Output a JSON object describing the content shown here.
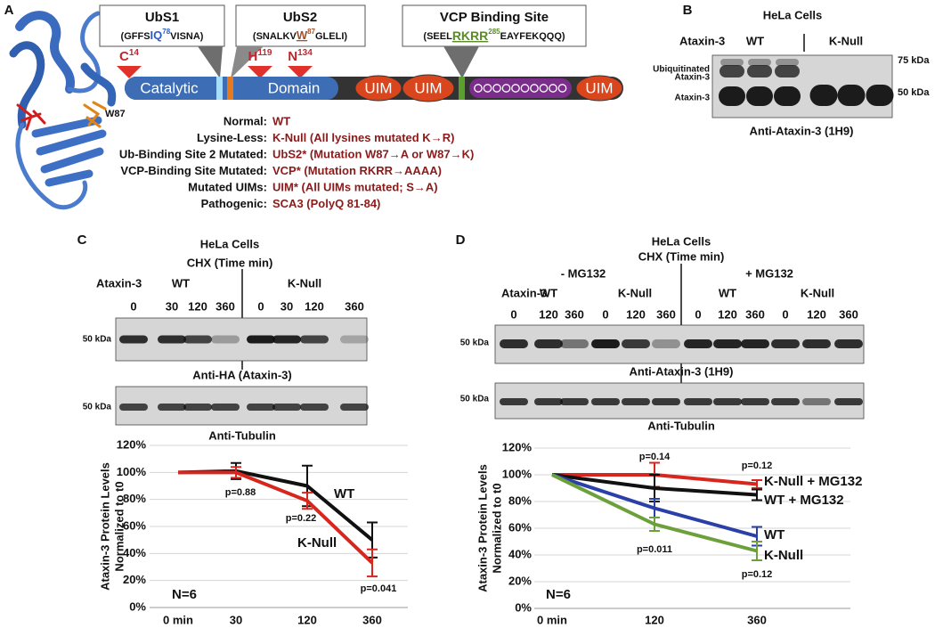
{
  "panel_a": {
    "label": "A",
    "sites": [
      {
        "title": "UbS1",
        "seq": [
          "(GFFS",
          "IQ",
          "78",
          "VISNA)"
        ]
      },
      {
        "title": "UbS2",
        "seq": [
          "(SNALKV",
          "W",
          "87",
          "GLELI)"
        ]
      },
      {
        "title": "VCP Binding Site",
        "seq": [
          "(SEEL",
          "RKRR",
          "285",
          "EAYFEKQQQ)"
        ]
      }
    ],
    "residues": [
      {
        "aa": "C",
        "pos": "14"
      },
      {
        "aa": "H",
        "pos": "119"
      },
      {
        "aa": "N",
        "pos": "134"
      }
    ],
    "domains": [
      "Catalytic",
      "Domain"
    ],
    "uims": [
      "UIM",
      "UIM",
      "UIM"
    ],
    "structure_label": "W87",
    "constructs": [
      {
        "label": "Normal:",
        "value": "WT"
      },
      {
        "label": "Lysine-Less:",
        "value": "K-Null (All lysines mutated K→R)"
      },
      {
        "label": "Ub-Binding Site 2 Mutated:",
        "value": "UbS2* (Mutation W87→A or W87→K)"
      },
      {
        "label": "VCP-Binding Site Mutated:",
        "value": "VCP* (Mutation RKRR→AAAA)"
      },
      {
        "label": "Mutated UIMs:",
        "value": "UIM* (All UIMs mutated; S→A)"
      },
      {
        "label": "Pathogenic:",
        "value": "SCA3 (PolyQ 81-84)"
      }
    ]
  },
  "panel_b": {
    "label": "B",
    "title": "HeLa Cells",
    "row_label": "Ataxin-3",
    "groups": [
      "WT",
      "K-Null"
    ],
    "markers": [
      "75 kDa",
      "50 kDa"
    ],
    "ubiquitinated_label": [
      "Ubiquitinated",
      "Ataxin-3"
    ],
    "band_label": "Ataxin-3",
    "antibody": "Anti-Ataxin-3 (1H9)"
  },
  "panel_c": {
    "label": "C",
    "title": "HeLa Cells",
    "subtitle": "CHX (Time min)",
    "row_label": "Ataxin-3",
    "groups": [
      "WT",
      "K-Null"
    ],
    "lanes": [
      "0",
      "30",
      "120",
      "360",
      "0",
      "30",
      "120",
      "360"
    ],
    "markers": [
      "50 kDa",
      "50 kDa"
    ],
    "antibodies": [
      "Anti-HA (Ataxin-3)",
      "Anti-Tubulin"
    ]
  },
  "panel_d": {
    "label": "D",
    "title": "HeLa Cells",
    "subtitle": "CHX (Time min)",
    "conditions": [
      "- MG132",
      "+ MG132"
    ],
    "row_label": "Ataxin-3",
    "groups": [
      "WT",
      "K-Null",
      "WT",
      "K-Null"
    ],
    "lanes": [
      "0",
      "120",
      "360",
      "0",
      "120",
      "360",
      "0",
      "120",
      "360",
      "0",
      "120",
      "360"
    ],
    "markers": [
      "50 kDa",
      "50 kDa"
    ],
    "antibodies": [
      "Anti-Ataxin-3 (1H9)",
      "Anti-Tubulin"
    ]
  },
  "chart_data": [
    {
      "type": "line",
      "categories": [
        "0 min",
        "30",
        "120",
        "360"
      ],
      "ylabel": [
        "Ataxin-3 Protein Levels",
        "Normalized to t0"
      ],
      "ylim": [
        0,
        120
      ],
      "yticks": [
        {
          "value": 0,
          "label": "0%"
        },
        {
          "value": 20,
          "label": "20%"
        },
        {
          "value": 40,
          "label": "40%"
        },
        {
          "value": 60,
          "label": "60%"
        },
        {
          "value": 80,
          "label": "80%"
        },
        {
          "value": 100,
          "label": "100%"
        },
        {
          "value": 120,
          "label": "120%"
        }
      ],
      "grid": true,
      "series": [
        {
          "name": "WT",
          "color": "#111111",
          "values": [
            100,
            101,
            90,
            50
          ],
          "errors": [
            null,
            6,
            15,
            13
          ]
        },
        {
          "name": "K-Null",
          "color": "#d7261e",
          "values": [
            100,
            100,
            79,
            33
          ],
          "errors": [
            null,
            4,
            6,
            10
          ]
        }
      ],
      "annotations": [
        "p=0.88",
        "p=0.22",
        "p=0.041",
        "N=6"
      ]
    },
    {
      "type": "line",
      "categories": [
        "0 min",
        "120",
        "360"
      ],
      "ylabel": [
        "Ataxin-3 Protein Levels",
        "Normalized to t0"
      ],
      "ylim": [
        0,
        120
      ],
      "yticks": [
        {
          "value": 0,
          "label": "0%"
        },
        {
          "value": 20,
          "label": "20%"
        },
        {
          "value": 40,
          "label": "40%"
        },
        {
          "value": 60,
          "label": "60%"
        },
        {
          "value": 80,
          "label": "80%"
        },
        {
          "value": 100,
          "label": "100%"
        },
        {
          "value": 120,
          "label": "120%"
        }
      ],
      "grid": true,
      "series": [
        {
          "name": "K-Null + MG132",
          "color": "#d7261e",
          "values": [
            100,
            100,
            93
          ],
          "errors": [
            null,
            9,
            3
          ]
        },
        {
          "name": "WT + MG132",
          "color": "#111111",
          "values": [
            100,
            90,
            85
          ],
          "errors": [
            null,
            10,
            4
          ]
        },
        {
          "name": "WT",
          "color": "#2b3fa8",
          "values": [
            100,
            75,
            54
          ],
          "errors": [
            null,
            7,
            7
          ]
        },
        {
          "name": "K-Null",
          "color": "#6ca03a",
          "values": [
            100,
            63,
            43
          ],
          "errors": [
            null,
            5,
            7
          ]
        }
      ],
      "annotations": [
        "p=0.14",
        "p=0.12",
        "p=0.011",
        "p=0.12",
        "N=6"
      ]
    }
  ]
}
